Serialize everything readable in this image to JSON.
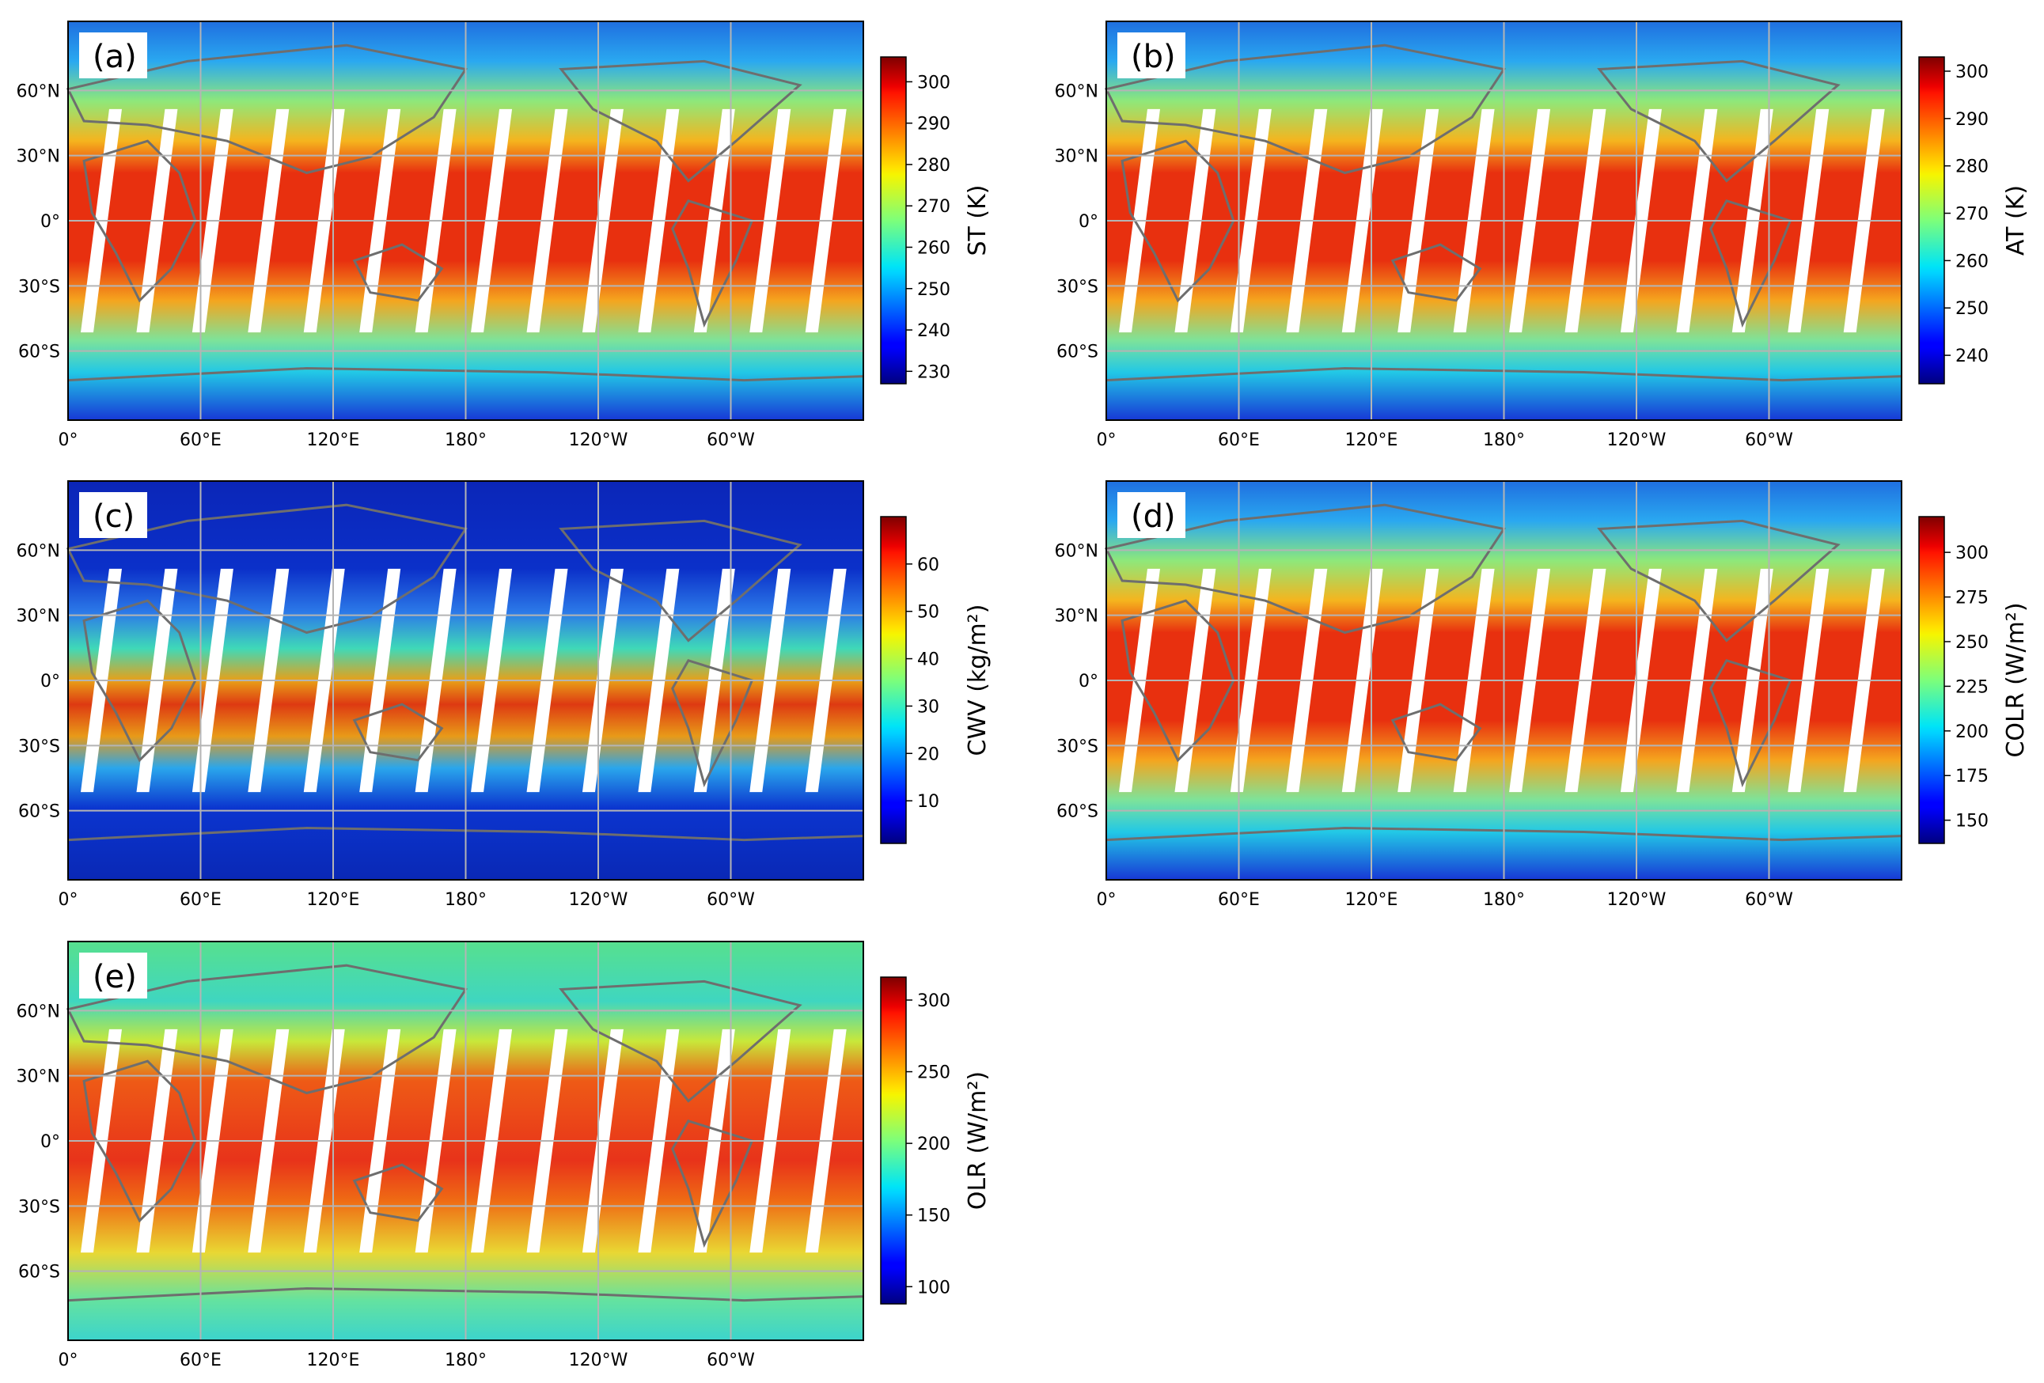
{
  "chart_data": [
    {
      "type": "heatmap",
      "panel": "(a)",
      "title": "",
      "colorbar_label": "ST (K)",
      "colorbar_ticks": [
        300,
        290,
        280,
        270,
        260,
        250,
        240,
        230
      ],
      "range": [
        227,
        306
      ],
      "xticklabels": [
        "0°",
        "60°E",
        "120°E",
        "180°",
        "120°W",
        "60°W"
      ],
      "yticklabels": [
        "60°N",
        "30°N",
        "0°",
        "30°S",
        "60°S"
      ],
      "colormap": "jet"
    },
    {
      "type": "heatmap",
      "panel": "(b)",
      "title": "",
      "colorbar_label": "AT (K)",
      "colorbar_ticks": [
        300,
        290,
        280,
        270,
        260,
        250,
        240
      ],
      "range": [
        234,
        303
      ],
      "xticklabels": [
        "0°",
        "60°E",
        "120°E",
        "180°",
        "120°W",
        "60°W"
      ],
      "yticklabels": [
        "60°N",
        "30°N",
        "0°",
        "30°S",
        "60°S"
      ],
      "colormap": "jet"
    },
    {
      "type": "heatmap",
      "panel": "(c)",
      "title": "",
      "colorbar_label": "CWV (kg/m²)",
      "colorbar_ticks": [
        60,
        50,
        40,
        30,
        20,
        10
      ],
      "range": [
        1,
        70
      ],
      "xticklabels": [
        "0°",
        "60°E",
        "120°E",
        "180°",
        "120°W",
        "60°W"
      ],
      "yticklabels": [
        "60°N",
        "30°N",
        "0°",
        "30°S",
        "60°S"
      ],
      "colormap": "jet"
    },
    {
      "type": "heatmap",
      "panel": "(d)",
      "title": "",
      "colorbar_label": "COLR (W/m²)",
      "colorbar_ticks": [
        300,
        275,
        250,
        225,
        200,
        175,
        150
      ],
      "range": [
        137,
        320
      ],
      "xticklabels": [
        "0°",
        "60°E",
        "120°E",
        "180°",
        "120°W",
        "60°W"
      ],
      "yticklabels": [
        "60°N",
        "30°N",
        "0°",
        "30°S",
        "60°S"
      ],
      "colormap": "jet"
    },
    {
      "type": "heatmap",
      "panel": "(e)",
      "title": "",
      "colorbar_label": "OLR (W/m²)",
      "colorbar_ticks": [
        300,
        250,
        200,
        150,
        100
      ],
      "range": [
        88,
        316
      ],
      "xticklabels": [
        "0°",
        "60°E",
        "120°E",
        "180°",
        "120°W",
        "60°W"
      ],
      "yticklabels": [
        "60°N",
        "30°N",
        "0°",
        "30°S",
        "60°S"
      ],
      "colormap": "jet"
    }
  ]
}
